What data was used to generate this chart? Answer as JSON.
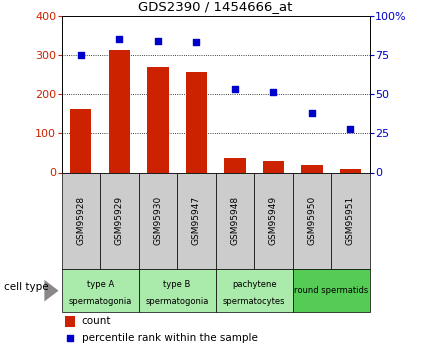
{
  "title": "GDS2390 / 1454666_at",
  "samples": [
    "GSM95928",
    "GSM95929",
    "GSM95930",
    "GSM95947",
    "GSM95948",
    "GSM95949",
    "GSM95950",
    "GSM95951"
  ],
  "counts": [
    163,
    312,
    268,
    255,
    38,
    30,
    18,
    10
  ],
  "percentiles": [
    75,
    85,
    84,
    83,
    53,
    51,
    38,
    28
  ],
  "cell_types": [
    {
      "label": "type A\nspermatogonia",
      "start": 0,
      "end": 2,
      "color": "#aaeaaa"
    },
    {
      "label": "type B\nspermatogonia",
      "start": 2,
      "end": 4,
      "color": "#aaeaaa"
    },
    {
      "label": "pachytene\nspermatocytes",
      "start": 4,
      "end": 6,
      "color": "#aaeaaa"
    },
    {
      "label": "round spermatids",
      "start": 6,
      "end": 8,
      "color": "#55cc55"
    }
  ],
  "bar_color": "#cc2200",
  "dot_color": "#0000cc",
  "left_ylim": [
    0,
    400
  ],
  "right_ylim": [
    0,
    100
  ],
  "left_yticks": [
    0,
    100,
    200,
    300,
    400
  ],
  "right_yticks": [
    0,
    25,
    50,
    75,
    100
  ],
  "right_yticklabels": [
    "0",
    "25",
    "50",
    "75",
    "100%"
  ],
  "grid_yticks": [
    100,
    200,
    300
  ],
  "background_color": "#ffffff",
  "tick_color_left": "#cc2200",
  "tick_color_right": "#0000cc",
  "legend_count_label": "count",
  "legend_percentile_label": "percentile rank within the sample",
  "cell_type_label": "cell type",
  "sample_box_color": "#cccccc",
  "cell_type_border_color": "#888888"
}
